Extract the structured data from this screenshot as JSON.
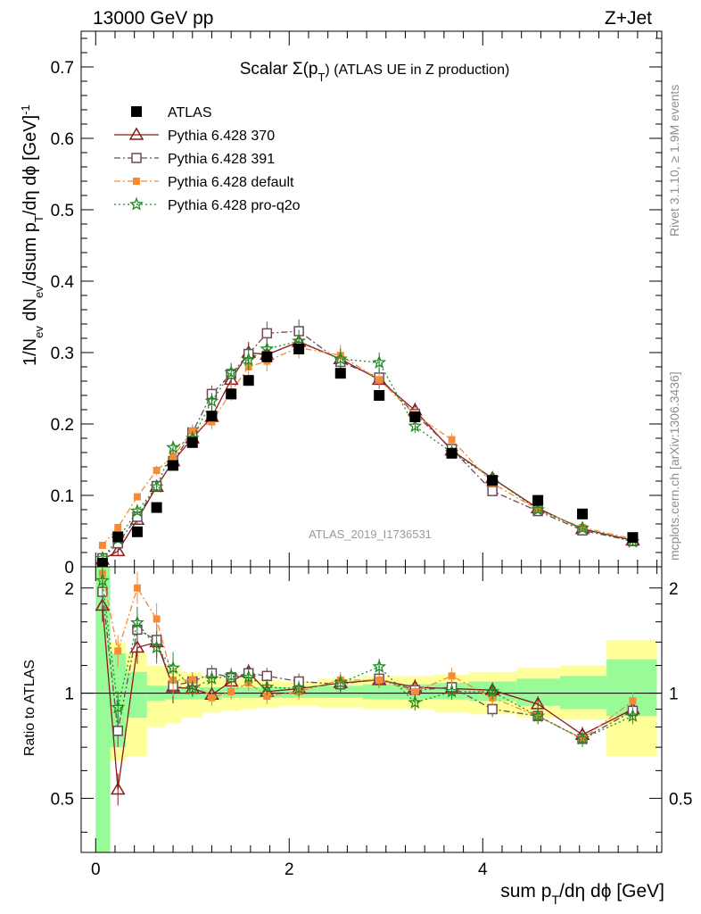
{
  "header": {
    "left": "13000 GeV pp",
    "right": "Z+Jet"
  },
  "side_labels": {
    "rivet": "Rivet 3.1.10, ≥ 1.9M events",
    "mcplots": "mcplots.cern.ch [arXiv:1306.3436]"
  },
  "chart_data": {
    "type": "line",
    "title_prefix": "Scalar Σ(p",
    "title_sub": "T",
    "title_suffix": ") (ATLAS UE in Z production)",
    "watermark": "ATLAS_2019_I1736531",
    "xlabel": {
      "main": "sum p",
      "sub": "T",
      "rest": "/dη dϕ [GeV]"
    },
    "ylabel_parts": {
      "a": "1/N",
      "a_sub": "ev",
      "b": " dN",
      "b_sub": "ev",
      "c": "/dsum p",
      "c_sub": "T",
      "d": "/dη dϕ  [GeV]",
      "d_sup": "-1"
    },
    "ratio_ylabel": "Ratio to ATLAS",
    "xlim": [
      -0.15,
      5.85
    ],
    "ylim": [
      0,
      0.75
    ],
    "ratio_ylim": [
      0.35,
      2.3
    ],
    "x_ticks": [
      0,
      2,
      4
    ],
    "y_ticks": [
      0,
      0.1,
      0.2,
      0.3,
      0.4,
      0.5,
      0.6,
      0.7
    ],
    "y_tick_labels": [
      "0",
      "0.1",
      "0.2",
      "0.3",
      "0.4",
      "0.5",
      "0.6",
      "0.7"
    ],
    "ratio_ticks": [
      0.5,
      1,
      2
    ],
    "ratio_tick_labels": [
      "0.5",
      "1",
      "2"
    ],
    "x": [
      0.07,
      0.23,
      0.43,
      0.63,
      0.8,
      1.0,
      1.2,
      1.4,
      1.58,
      1.77,
      2.1,
      2.53,
      2.93,
      3.3,
      3.68,
      4.1,
      4.57,
      5.03,
      5.55
    ],
    "bin_edges": [
      0.0,
      0.15,
      0.31,
      0.53,
      0.72,
      0.89,
      1.1,
      1.3,
      1.5,
      1.67,
      1.9,
      2.3,
      2.76,
      3.1,
      3.5,
      3.86,
      4.35,
      4.8,
      5.28,
      5.8
    ],
    "band_inner": [
      [
        0.0,
        2.3
      ],
      [
        0.7,
        1.3
      ],
      [
        0.85,
        1.15
      ],
      [
        0.95,
        1.05
      ],
      [
        0.96,
        1.05
      ],
      [
        0.96,
        1.04
      ],
      [
        0.96,
        1.04
      ],
      [
        0.97,
        1.04
      ],
      [
        0.97,
        1.04
      ],
      [
        0.97,
        1.04
      ],
      [
        0.97,
        1.04
      ],
      [
        0.97,
        1.05
      ],
      [
        0.96,
        1.06
      ],
      [
        0.96,
        1.06
      ],
      [
        0.96,
        1.07
      ],
      [
        0.95,
        1.08
      ],
      [
        0.92,
        1.1
      ],
      [
        0.9,
        1.12
      ],
      [
        0.86,
        1.25
      ]
    ],
    "band_outer": [
      [
        0.0,
        2.3
      ],
      [
        0.64,
        1.4
      ],
      [
        0.66,
        1.3
      ],
      [
        0.8,
        1.2
      ],
      [
        0.82,
        1.18
      ],
      [
        0.85,
        1.15
      ],
      [
        0.88,
        1.12
      ],
      [
        0.89,
        1.1
      ],
      [
        0.9,
        1.1
      ],
      [
        0.91,
        1.09
      ],
      [
        0.92,
        1.08
      ],
      [
        0.91,
        1.1
      ],
      [
        0.9,
        1.12
      ],
      [
        0.9,
        1.12
      ],
      [
        0.88,
        1.13
      ],
      [
        0.87,
        1.15
      ],
      [
        0.85,
        1.18
      ],
      [
        0.84,
        1.2
      ],
      [
        0.66,
        1.42
      ]
    ],
    "series": [
      {
        "name": "ATLAS",
        "color": "#000000",
        "marker": "square-filled",
        "values": [
          0.005,
          0.042,
          0.049,
          0.083,
          0.142,
          0.174,
          0.211,
          0.242,
          0.261,
          0.294,
          0.305,
          0.271,
          0.24,
          0.21,
          0.159,
          0.121,
          0.093,
          0.074,
          0.041
        ]
      },
      {
        "name": "Pythia 6.428 370",
        "color": "#8b1a1a",
        "marker": "triangle-open",
        "dash": "",
        "values": [
          0.01,
          0.022,
          0.066,
          0.112,
          0.148,
          0.18,
          0.21,
          0.262,
          0.3,
          0.297,
          0.315,
          0.291,
          0.262,
          0.219,
          0.163,
          0.124,
          0.082,
          0.053,
          0.037
        ],
        "ratio": [
          1.78,
          0.53,
          1.35,
          1.4,
          1.04,
          1.03,
          0.99,
          1.08,
          1.15,
          1.01,
          1.03,
          1.07,
          1.09,
          1.04,
          1.03,
          1.02,
          0.93,
          0.76,
          0.9
        ]
      },
      {
        "name": "Pythia 6.428 391",
        "color": "#6b4a5a",
        "marker": "square-open",
        "dash": "7,3,2,3",
        "values": [
          0.012,
          0.033,
          0.07,
          0.113,
          0.148,
          0.188,
          0.242,
          0.27,
          0.298,
          0.327,
          0.33,
          0.287,
          0.265,
          0.214,
          0.165,
          0.106,
          0.078,
          0.051,
          0.036
        ],
        "ratio": [
          1.95,
          0.78,
          1.52,
          1.42,
          1.05,
          1.08,
          1.14,
          1.11,
          1.14,
          1.12,
          1.08,
          1.06,
          1.1,
          1.02,
          1.04,
          0.9,
          0.86,
          0.74,
          0.89
        ]
      },
      {
        "name": "Pythia 6.428 default",
        "color": "#f58a37",
        "marker": "square-filled-small",
        "dash": "7,3,2,3",
        "values": [
          0.03,
          0.055,
          0.098,
          0.135,
          0.155,
          0.19,
          0.203,
          0.245,
          0.28,
          0.288,
          0.307,
          0.296,
          0.262,
          0.213,
          0.178,
          0.117,
          0.08,
          0.055,
          0.039
        ],
        "ratio": [
          2.2,
          1.32,
          2.0,
          1.63,
          1.09,
          1.09,
          0.97,
          1.01,
          1.07,
          0.98,
          1.01,
          1.09,
          1.09,
          1.01,
          1.12,
          0.97,
          0.86,
          0.74,
          0.95
        ]
      },
      {
        "name": "Pythia 6.428 pro-q2o",
        "color": "#1e8c1e",
        "marker": "star-open",
        "dash": "2,3",
        "values": [
          0.012,
          0.039,
          0.078,
          0.112,
          0.167,
          0.18,
          0.232,
          0.272,
          0.29,
          0.305,
          0.316,
          0.291,
          0.286,
          0.197,
          0.16,
          0.124,
          0.08,
          0.054,
          0.035
        ],
        "ratio": [
          2.1,
          0.91,
          1.59,
          1.35,
          1.18,
          1.03,
          1.1,
          1.12,
          1.11,
          1.04,
          1.03,
          1.07,
          1.19,
          0.94,
          1.01,
          1.01,
          0.86,
          0.74,
          0.86
        ]
      }
    ]
  }
}
